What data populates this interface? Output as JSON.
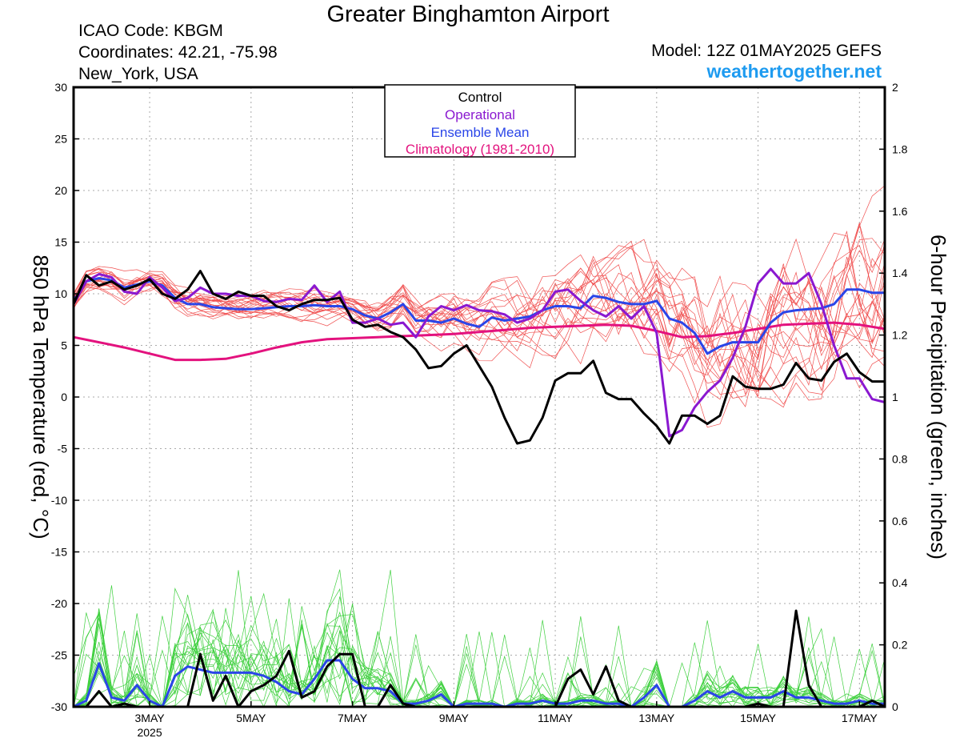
{
  "header": {
    "title": "Greater Binghamton Airport",
    "icao": "ICAO Code: KBGM",
    "coordinates": "Coordinates: 42.21, -75.98",
    "location": "New_York, USA",
    "model": "Model: 12Z 01MAY2025 GEFS",
    "site": "weathertogether.net"
  },
  "colors": {
    "members_temp": "#f05050",
    "members_precip": "#3fd03f",
    "control": "#000000",
    "operational": "#8a18d0",
    "ensemble_mean": "#2a45e8",
    "climatology": "#e3127e",
    "site": "#1e9bf0"
  },
  "chart_data": {
    "type": "line",
    "xlabel": "",
    "ylabel": "850 hPa Temperature (red, °C)",
    "y2label": "6-hour Precipitation (green, inches)",
    "xlim": [
      1.5,
      17.5
    ],
    "ylim": [
      -30,
      30
    ],
    "y2lim": [
      0,
      2
    ],
    "x_ticks": [
      {
        "x": 3,
        "label": "3MAY",
        "sub": "2025"
      },
      {
        "x": 5,
        "label": "5MAY",
        "sub": ""
      },
      {
        "x": 7,
        "label": "7MAY",
        "sub": ""
      },
      {
        "x": 9,
        "label": "9MAY",
        "sub": ""
      },
      {
        "x": 11,
        "label": "11MAY",
        "sub": ""
      },
      {
        "x": 13,
        "label": "13MAY",
        "sub": ""
      },
      {
        "x": 15,
        "label": "15MAY",
        "sub": ""
      },
      {
        "x": 17,
        "label": "17MAY",
        "sub": ""
      }
    ],
    "y_ticks": [
      30,
      25,
      20,
      15,
      10,
      5,
      0,
      -5,
      -10,
      -15,
      -20,
      -25,
      -30
    ],
    "y2_ticks": [
      "2",
      "1.8",
      "1.6",
      "1.4",
      "1.2",
      "1",
      "0.8",
      "0.6",
      "0.4",
      "0.2",
      "0"
    ],
    "grid": true,
    "legend_position": "top-center",
    "legend": [
      "Control",
      "Operational",
      "Ensemble Mean",
      "Climatology (1981-2010)"
    ],
    "series": [
      {
        "name": "Control",
        "axis": "left",
        "x": [
          1.5,
          1.75,
          2.0,
          2.25,
          2.5,
          2.75,
          3.0,
          3.25,
          3.5,
          3.75,
          4.0,
          4.25,
          4.5,
          4.75,
          5.0,
          5.25,
          5.5,
          5.75,
          6.0,
          6.25,
          6.5,
          6.75,
          7.0,
          7.25,
          7.5,
          7.75,
          8.0,
          8.25,
          8.5,
          8.75,
          9.0,
          9.25,
          9.5,
          9.75,
          10.0,
          10.25,
          10.5,
          10.75,
          11.0,
          11.25,
          11.5,
          11.75,
          12.0,
          12.25,
          12.5,
          12.75,
          13.0,
          13.25,
          13.5,
          13.75,
          14.0,
          14.25,
          14.5,
          14.75,
          15.0,
          15.25,
          15.5,
          15.75,
          16.0,
          16.25,
          16.5,
          16.75,
          17.0,
          17.25,
          17.5
        ],
        "y": [
          9.0,
          11.8,
          10.8,
          11.2,
          10.4,
          10.8,
          11.4,
          10.0,
          9.5,
          10.4,
          12.2,
          10.0,
          9.5,
          10.2,
          9.8,
          9.8,
          8.8,
          8.4,
          9.0,
          9.4,
          9.4,
          9.6,
          7.5,
          6.8,
          7.0,
          6.3,
          5.8,
          4.6,
          2.8,
          3.0,
          4.2,
          5.0,
          3.0,
          1.0,
          -2.0,
          -4.5,
          -4.2,
          -2.0,
          1.6,
          2.3,
          2.3,
          3.5,
          0.4,
          -0.2,
          -0.2,
          -1.6,
          -2.8,
          -4.5,
          -1.8,
          -1.8,
          -2.6,
          -1.8,
          2.0,
          1.0,
          0.8,
          0.8,
          1.2,
          3.3,
          1.8,
          1.6,
          3.4,
          4.2,
          2.4,
          1.5,
          1.5
        ]
      },
      {
        "name": "Operational",
        "axis": "left",
        "x": [
          1.5,
          1.75,
          2.0,
          2.25,
          2.5,
          2.75,
          3.0,
          3.25,
          3.5,
          3.75,
          4.0,
          4.25,
          4.5,
          4.75,
          5.0,
          5.25,
          5.5,
          5.75,
          6.0,
          6.25,
          6.5,
          6.75,
          7.0,
          7.25,
          7.5,
          7.75,
          8.0,
          8.25,
          8.5,
          8.75,
          9.0,
          9.25,
          9.5,
          9.75,
          10.0,
          10.25,
          10.5,
          10.75,
          11.0,
          11.25,
          11.5,
          11.75,
          12.0,
          12.25,
          12.5,
          12.75,
          13.0,
          13.25,
          13.5,
          13.75,
          14.0,
          14.25,
          14.5,
          14.75,
          15.0,
          15.25,
          15.5,
          15.75,
          16.0,
          16.25,
          16.5,
          16.75,
          17.0,
          17.25,
          17.5
        ],
        "y": [
          9.0,
          11.2,
          11.9,
          11.6,
          10.2,
          10.0,
          11.6,
          10.6,
          9.3,
          9.6,
          10.6,
          10.0,
          10.0,
          9.8,
          9.8,
          9.3,
          9.2,
          9.5,
          9.4,
          10.8,
          9.2,
          10.2,
          7.2,
          7.2,
          7.6,
          7.0,
          7.2,
          5.8,
          7.8,
          8.8,
          8.4,
          8.9,
          8.4,
          8.3,
          8.0,
          7.2,
          7.6,
          8.4,
          10.2,
          10.4,
          9.3,
          8.4,
          7.8,
          8.8,
          7.6,
          8.8,
          6.2,
          -3.8,
          -3.2,
          -1.0,
          0.5,
          1.6,
          3.8,
          6.8,
          11.0,
          12.4,
          11.0,
          11.0,
          12.0,
          9.0,
          5.0,
          1.8,
          1.8,
          -0.2,
          -0.5
        ]
      },
      {
        "name": "Ensemble Mean",
        "axis": "left",
        "x": [
          1.5,
          1.75,
          2.0,
          2.25,
          2.5,
          2.75,
          3.0,
          3.25,
          3.5,
          3.75,
          4.0,
          4.25,
          4.5,
          4.75,
          5.0,
          5.25,
          5.5,
          5.75,
          6.0,
          6.25,
          6.5,
          6.75,
          7.0,
          7.25,
          7.5,
          7.75,
          8.0,
          8.25,
          8.5,
          8.75,
          9.0,
          9.25,
          9.5,
          9.75,
          10.0,
          10.25,
          10.5,
          10.75,
          11.0,
          11.25,
          11.5,
          11.75,
          12.0,
          12.25,
          12.5,
          12.75,
          13.0,
          13.25,
          13.5,
          13.75,
          14.0,
          14.25,
          14.5,
          14.75,
          15.0,
          15.25,
          15.5,
          15.75,
          16.0,
          16.25,
          16.5,
          16.75,
          17.0,
          17.25,
          17.5
        ],
        "y": [
          9.3,
          11.2,
          11.5,
          11.3,
          10.6,
          10.9,
          11.2,
          10.8,
          9.6,
          9.0,
          9.0,
          8.7,
          8.6,
          8.5,
          8.5,
          8.6,
          8.7,
          8.8,
          8.8,
          8.9,
          8.8,
          8.8,
          8.5,
          7.9,
          7.6,
          8.2,
          9.0,
          7.4,
          7.4,
          7.2,
          7.6,
          7.1,
          6.8,
          7.7,
          7.4,
          7.6,
          7.8,
          8.4,
          8.8,
          8.8,
          8.6,
          9.8,
          9.6,
          9.2,
          9.0,
          9.0,
          9.3,
          7.6,
          7.2,
          6.2,
          4.2,
          4.9,
          5.3,
          5.3,
          5.3,
          7.2,
          8.2,
          8.4,
          8.5,
          8.6,
          9.0,
          10.4,
          10.4,
          10.1,
          10.1
        ]
      },
      {
        "name": "Climatology (1981-2010)",
        "axis": "left",
        "x": [
          1.5,
          2.0,
          2.5,
          3.0,
          3.5,
          4.0,
          4.5,
          5.0,
          5.5,
          6.0,
          6.5,
          7.0,
          7.5,
          8.0,
          8.5,
          9.0,
          9.5,
          10.0,
          10.5,
          11.0,
          11.5,
          12.0,
          12.5,
          13.0,
          13.5,
          14.0,
          14.5,
          15.0,
          15.5,
          16.0,
          16.5,
          17.0,
          17.5
        ],
        "y": [
          5.8,
          5.3,
          4.8,
          4.2,
          3.6,
          3.6,
          3.7,
          4.2,
          4.8,
          5.3,
          5.6,
          5.7,
          5.8,
          5.9,
          6.0,
          6.1,
          6.3,
          6.5,
          6.7,
          6.8,
          6.9,
          7.0,
          6.9,
          6.4,
          5.8,
          5.9,
          6.2,
          6.6,
          7.0,
          7.1,
          7.2,
          7.0,
          6.6
        ]
      },
      {
        "name": "Control precip",
        "axis": "right",
        "x": [
          1.5,
          1.75,
          2.0,
          2.25,
          2.5,
          2.75,
          3.0,
          3.25,
          3.5,
          3.75,
          4.0,
          4.25,
          4.5,
          4.75,
          5.0,
          5.25,
          5.5,
          5.75,
          6.0,
          6.25,
          6.5,
          6.75,
          7.0,
          7.25,
          7.5,
          7.75,
          8.0,
          8.25,
          8.5,
          8.75,
          9.0,
          9.25,
          9.5,
          9.75,
          10.0,
          10.25,
          10.5,
          10.75,
          11.0,
          11.25,
          11.5,
          11.75,
          12.0,
          12.25,
          12.5,
          12.75,
          13.0,
          13.25,
          13.5,
          13.75,
          14.0,
          14.25,
          14.5,
          14.75,
          15.0,
          15.25,
          15.5,
          15.75,
          16.0,
          16.25,
          16.5,
          16.75,
          17.0,
          17.25,
          17.5
        ],
        "y": [
          0.0,
          0.0,
          0.05,
          0.0,
          0.01,
          0.0,
          0.0,
          0.0,
          0.0,
          0.0,
          0.17,
          0.02,
          0.1,
          0.0,
          0.05,
          0.07,
          0.1,
          0.18,
          0.03,
          0.05,
          0.13,
          0.17,
          0.17,
          0.0,
          0.0,
          0.07,
          0.01,
          0.0,
          0.0,
          0.0,
          0.0,
          0.0,
          0.0,
          0.0,
          0.0,
          0.0,
          0.0,
          0.0,
          0.0,
          0.09,
          0.12,
          0.04,
          0.13,
          0.02,
          0.0,
          0.0,
          0.0,
          0.0,
          0.0,
          0.0,
          0.0,
          0.0,
          0.0,
          0.0,
          0.01,
          0.0,
          0.0,
          0.31,
          0.07,
          0.0,
          0.0,
          0.0,
          0.0,
          0.02,
          0.0
        ]
      },
      {
        "name": "Mean precip",
        "axis": "right",
        "x": [
          1.5,
          1.75,
          2.0,
          2.25,
          2.5,
          2.75,
          3.0,
          3.25,
          3.5,
          3.75,
          4.0,
          4.25,
          4.5,
          4.75,
          5.0,
          5.25,
          5.5,
          5.75,
          6.0,
          6.25,
          6.5,
          6.75,
          7.0,
          7.25,
          7.5,
          7.75,
          8.0,
          8.25,
          8.5,
          8.75,
          9.0,
          9.25,
          9.5,
          9.75,
          10.0,
          10.25,
          10.5,
          10.75,
          11.0,
          11.25,
          11.5,
          11.75,
          12.0,
          12.25,
          12.5,
          12.75,
          13.0,
          13.25,
          13.5,
          13.75,
          14.0,
          14.25,
          14.5,
          14.75,
          15.0,
          15.25,
          15.5,
          15.75,
          16.0,
          16.25,
          16.5,
          16.75,
          17.0,
          17.25,
          17.5
        ],
        "y": [
          0.0,
          0.02,
          0.14,
          0.03,
          0.02,
          0.07,
          0.02,
          0.0,
          0.1,
          0.13,
          0.12,
          0.11,
          0.11,
          0.11,
          0.11,
          0.1,
          0.08,
          0.05,
          0.04,
          0.09,
          0.15,
          0.15,
          0.09,
          0.06,
          0.06,
          0.05,
          0.01,
          0.01,
          0.02,
          0.04,
          0.0,
          0.01,
          0.01,
          0.01,
          0.0,
          0.01,
          0.01,
          0.02,
          0.01,
          0.01,
          0.02,
          0.02,
          0.01,
          0.01,
          0.0,
          0.03,
          0.07,
          0.0,
          0.0,
          0.02,
          0.05,
          0.03,
          0.05,
          0.03,
          0.03,
          0.03,
          0.05,
          0.03,
          0.03,
          0.02,
          0.01,
          0.01,
          0.02,
          0.01,
          0.01
        ]
      }
    ]
  }
}
